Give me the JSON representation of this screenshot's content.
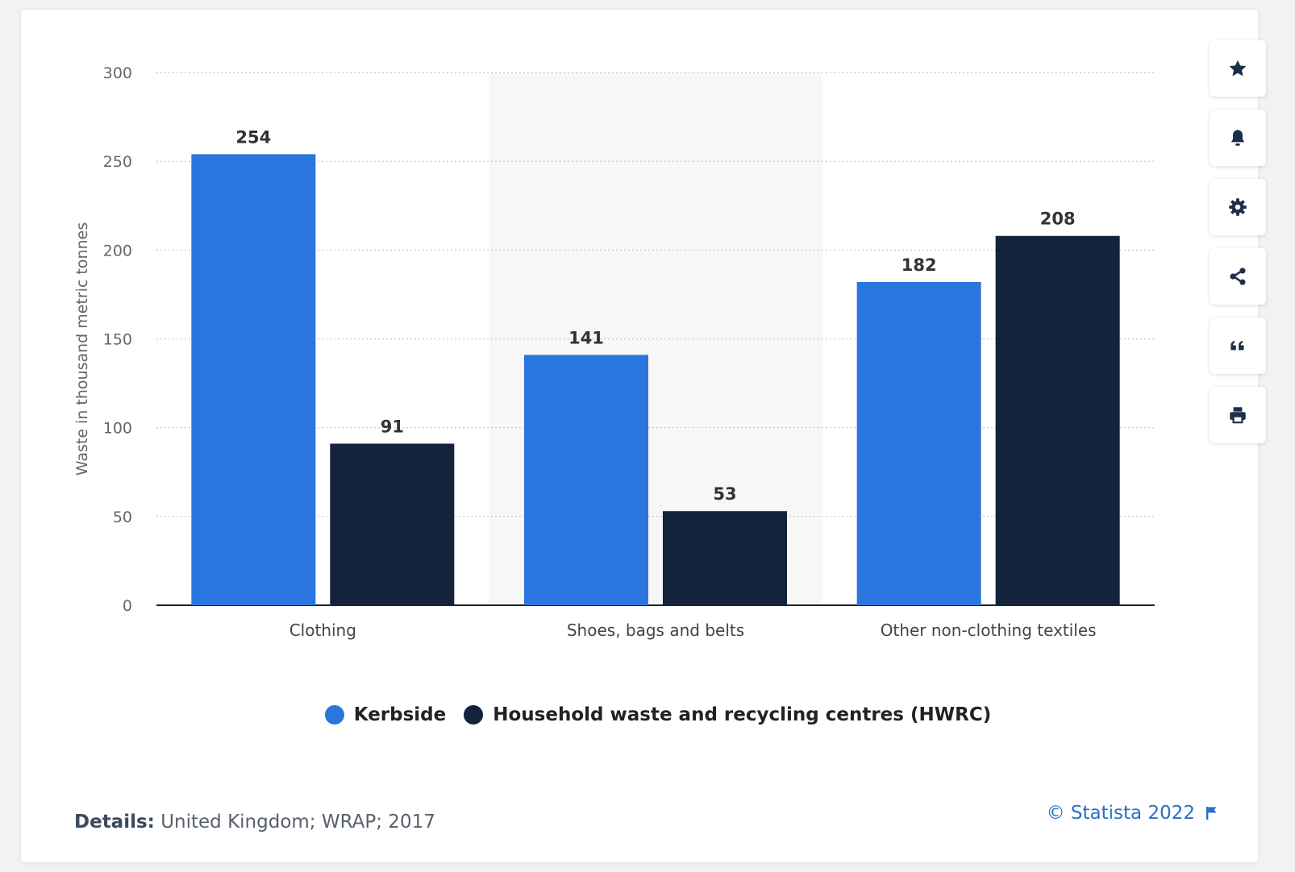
{
  "chart_data": {
    "type": "bar",
    "categories": [
      "Clothing",
      "Shoes, bags and belts",
      "Other non-clothing textiles"
    ],
    "series": [
      {
        "name": "Kerbside",
        "values": [
          254,
          141,
          182
        ],
        "color": "#2b76de"
      },
      {
        "name": "Household waste and recycling centres (HWRC)",
        "values": [
          91,
          53,
          208
        ],
        "color": "#12233b"
      }
    ],
    "ylabel": "Waste in thousand metric tonnes",
    "ylim": [
      0,
      300
    ],
    "yticks": [
      0,
      50,
      100,
      150,
      200,
      250,
      300
    ],
    "grid": true,
    "legend_position": "bottom-center",
    "highlighted_category_index": 1
  },
  "toolbar": {
    "items": [
      "star-icon",
      "bell-icon",
      "gear-icon",
      "share-icon",
      "quote-icon",
      "print-icon"
    ]
  },
  "footer": {
    "details_label": "Details:",
    "details_text": "United Kingdom; WRAP; 2017",
    "copyright": "© Statista 2022"
  }
}
